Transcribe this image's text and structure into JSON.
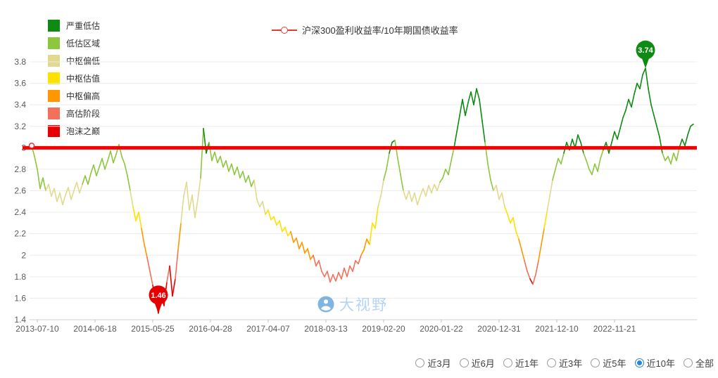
{
  "watermark": {
    "text": "大视野"
  },
  "valuation_legend": [
    {
      "label": "严重低估",
      "color": "#0f8a12"
    },
    {
      "label": "低估区域",
      "color": "#8dc63f"
    },
    {
      "label": "中枢偏低",
      "color": "#e2d98f"
    },
    {
      "label": "中枢估值",
      "color": "#ffe100"
    },
    {
      "label": "中枢偏高",
      "color": "#ff9800"
    },
    {
      "label": "高估阶段",
      "color": "#f3705b"
    },
    {
      "label": "泡沫之巅",
      "color": "#e60000"
    }
  ],
  "time_range": {
    "options": [
      {
        "label": "近3月",
        "selected": false
      },
      {
        "label": "近6月",
        "selected": false
      },
      {
        "label": "近1年",
        "selected": false
      },
      {
        "label": "近3年",
        "selected": false
      },
      {
        "label": "近5年",
        "selected": false
      },
      {
        "label": "近10年",
        "selected": true
      },
      {
        "label": "全部",
        "selected": false
      }
    ]
  },
  "chart_data": {
    "type": "line",
    "title": "沪深300盈利收益率/10年期国债收益率",
    "ylim": [
      1.4,
      3.8
    ],
    "y_ticks": [
      1.4,
      1.6,
      1.8,
      2,
      2.2,
      2.4,
      2.6,
      2.8,
      3,
      3.2,
      3.4,
      3.6,
      3.8
    ],
    "x_tick_labels": [
      "2013-07-10",
      "2014-06-18",
      "2015-05-25",
      "2016-04-28",
      "2017-04-07",
      "2018-03-13",
      "2019-02-20",
      "2020-01-22",
      "2020-12-31",
      "2021-12-10",
      "2022-11-21"
    ],
    "grid": true,
    "legend_position": "top-left",
    "reference_line": {
      "value": 3,
      "color": "#f30000"
    },
    "bands": [
      {
        "label": "严重低估",
        "min": 3.0,
        "color": "#0f8a12"
      },
      {
        "label": "低估区域",
        "min": 2.65,
        "color": "#8dc63f"
      },
      {
        "label": "中枢偏低",
        "min": 2.42,
        "color": "#e2d98f"
      },
      {
        "label": "中枢估值",
        "min": 2.18,
        "color": "#ffe100"
      },
      {
        "label": "中枢偏高",
        "min": 1.98,
        "color": "#ff9800"
      },
      {
        "label": "高估阶段",
        "min": 1.77,
        "color": "#f3705b"
      },
      {
        "label": "泡沫之巅",
        "min": -99,
        "color": "#e60000"
      }
    ],
    "markers": {
      "max": {
        "value": 3.74,
        "index": 218,
        "color": "#0f8a12"
      },
      "min": {
        "value": 1.46,
        "index": 45,
        "color": "#e60000"
      }
    },
    "start_marker": {
      "index": 0,
      "value": 3.02
    },
    "values": [
      3.02,
      2.92,
      2.8,
      2.62,
      2.72,
      2.6,
      2.66,
      2.55,
      2.62,
      2.5,
      2.58,
      2.47,
      2.56,
      2.63,
      2.52,
      2.6,
      2.68,
      2.58,
      2.66,
      2.74,
      2.66,
      2.76,
      2.84,
      2.74,
      2.82,
      2.9,
      2.8,
      2.88,
      2.97,
      2.86,
      2.94,
      3.03,
      2.92,
      2.85,
      2.74,
      2.6,
      2.45,
      2.32,
      2.4,
      2.25,
      2.1,
      1.98,
      1.85,
      1.72,
      1.58,
      1.46,
      1.62,
      1.53,
      1.75,
      1.9,
      1.62,
      1.78,
      2.05,
      2.3,
      2.55,
      2.68,
      2.42,
      2.56,
      2.35,
      2.52,
      2.72,
      3.18,
      2.95,
      3.05,
      2.88,
      2.96,
      2.86,
      2.92,
      2.82,
      2.88,
      2.78,
      2.85,
      2.75,
      2.82,
      2.72,
      2.78,
      2.68,
      2.74,
      2.64,
      2.7,
      2.52,
      2.45,
      2.5,
      2.38,
      2.42,
      2.33,
      2.36,
      2.28,
      2.32,
      2.22,
      2.26,
      2.18,
      2.22,
      2.12,
      2.16,
      2.06,
      2.12,
      2.02,
      2.06,
      1.96,
      2.0,
      1.9,
      1.95,
      1.85,
      1.8,
      1.85,
      1.75,
      1.82,
      1.76,
      1.84,
      1.78,
      1.88,
      1.8,
      1.9,
      1.85,
      1.95,
      1.92,
      2.0,
      2.05,
      2.15,
      2.1,
      2.3,
      2.25,
      2.45,
      2.55,
      2.7,
      2.8,
      2.95,
      3.05,
      3.07,
      2.9,
      2.75,
      2.6,
      2.52,
      2.6,
      2.5,
      2.58,
      2.47,
      2.55,
      2.62,
      2.55,
      2.65,
      2.58,
      2.66,
      2.6,
      2.68,
      2.72,
      2.8,
      2.75,
      2.88,
      3.0,
      3.15,
      3.3,
      3.45,
      3.3,
      3.42,
      3.52,
      3.4,
      3.55,
      3.45,
      3.25,
      3.05,
      2.85,
      2.7,
      2.6,
      2.65,
      2.52,
      2.58,
      2.45,
      2.38,
      2.3,
      2.35,
      2.22,
      2.15,
      2.05,
      1.95,
      1.85,
      1.78,
      1.73,
      1.82,
      1.95,
      2.1,
      2.25,
      2.4,
      2.55,
      2.7,
      2.8,
      2.9,
      2.85,
      2.95,
      3.05,
      2.98,
      3.08,
      3.0,
      3.12,
      3.05,
      2.95,
      2.88,
      2.8,
      2.75,
      2.85,
      2.78,
      2.9,
      2.98,
      3.05,
      2.95,
      3.05,
      3.15,
      3.08,
      3.18,
      3.28,
      3.35,
      3.45,
      3.38,
      3.5,
      3.6,
      3.55,
      3.68,
      3.74,
      3.55,
      3.4,
      3.3,
      3.2,
      3.1,
      2.95,
      2.88,
      2.92,
      2.85,
      2.95,
      2.88,
      3.0,
      3.08,
      3.02,
      3.12,
      3.2,
      3.22
    ]
  }
}
